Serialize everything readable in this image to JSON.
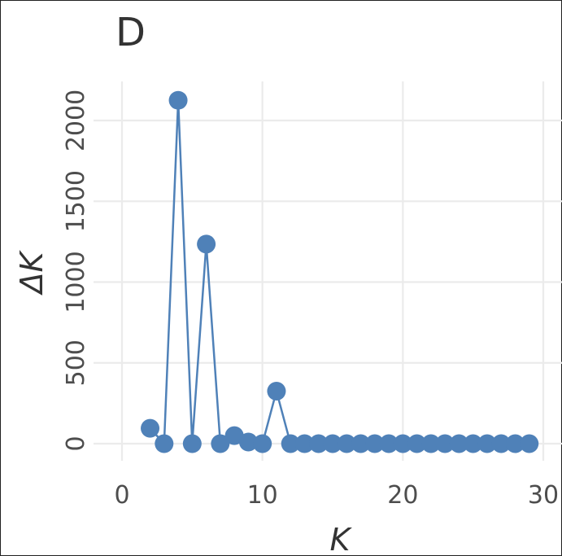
{
  "chart_data": {
    "type": "line",
    "panel_label": "D",
    "xlabel": "K",
    "ylabel": "ΔK",
    "xlim": [
      0,
      30
    ],
    "ylim": [
      -100,
      2250
    ],
    "xticks": [
      0,
      10,
      20,
      30
    ],
    "yticks": [
      0,
      500,
      1000,
      1500,
      2000
    ],
    "grid": true,
    "legend": "none",
    "series": [
      {
        "color": "#4f81b8",
        "x": [
          2,
          3,
          4,
          5,
          6,
          7,
          8,
          9,
          10,
          11,
          12,
          13,
          14,
          15,
          16,
          17,
          18,
          19,
          20,
          21,
          22,
          23,
          24,
          25,
          26,
          27,
          28,
          29
        ],
        "y": [
          95,
          0,
          2125,
          0,
          1235,
          0,
          50,
          10,
          0,
          325,
          0,
          0,
          0,
          0,
          0,
          0,
          0,
          0,
          0,
          0,
          0,
          0,
          0,
          0,
          0,
          0,
          0,
          0
        ]
      }
    ]
  }
}
